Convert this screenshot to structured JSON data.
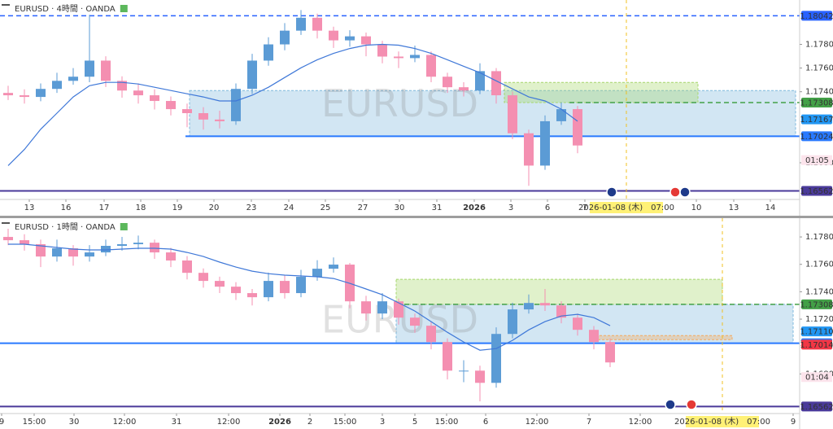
{
  "chart_data": [
    {
      "type": "candlestick",
      "title": "EURUSD · 4時間 · OANDA",
      "watermark": "EURUSD",
      "up_color": "#5b9bd5",
      "down_color": "#f48fb1",
      "ma_color": "#3f78d8",
      "xlim": [
        0,
        49.15
      ],
      "ylim": [
        1.1649,
        1.18175
      ],
      "yticks": [
        {
          "value": 1.178,
          "label": "1.17800"
        },
        {
          "value": 1.176,
          "label": "1.17600"
        },
        {
          "value": 1.174,
          "label": "1.17400"
        },
        {
          "value": 1.168,
          "label": "1.16800"
        }
      ],
      "xticks": [
        {
          "value": 1.8,
          "label": "13"
        },
        {
          "value": 4.05,
          "label": "16"
        },
        {
          "value": 6.4,
          "label": "17"
        },
        {
          "value": 8.65,
          "label": "18"
        },
        {
          "value": 10.9,
          "label": "19"
        },
        {
          "value": 13.15,
          "label": "20"
        },
        {
          "value": 15.45,
          "label": "23"
        },
        {
          "value": 17.75,
          "label": "24"
        },
        {
          "value": 20,
          "label": "25"
        },
        {
          "value": 22.3,
          "label": "27"
        },
        {
          "value": 24.55,
          "label": "30"
        },
        {
          "value": 26.85,
          "label": "31"
        },
        {
          "value": 29.15,
          "label": "2026"
        },
        {
          "value": 31.4,
          "label": "3"
        },
        {
          "value": 33.65,
          "label": "6"
        },
        {
          "value": 35.95,
          "label": "7"
        },
        {
          "value": 42.8,
          "label": "10"
        },
        {
          "value": 45.1,
          "label": "13"
        },
        {
          "value": 47.35,
          "label": "14"
        }
      ],
      "open": [
        1.1739,
        1.1737,
        1.17356,
        1.17424,
        1.17492,
        1.17527,
        1.17663,
        1.17492,
        1.1741,
        1.1737,
        1.17322,
        1.17253,
        1.17219,
        1.17165,
        1.17151,
        1.17424,
        1.17663,
        1.178,
        1.17916,
        1.18025,
        1.17916,
        1.17834,
        1.17868,
        1.178,
        1.17697,
        1.17684,
        1.17711,
        1.17527,
        1.17438,
        1.1741,
        1.17574,
        1.1737,
        1.17049,
        1.16776,
        1.17151,
        1.17253
      ],
      "high": [
        1.1745,
        1.1742,
        1.1747,
        1.1756,
        1.176,
        1.1805,
        1.177,
        1.1753,
        1.1747,
        1.1742,
        1.1736,
        1.173,
        1.1727,
        1.1724,
        1.1747,
        1.1772,
        1.1786,
        1.1798,
        1.1809,
        1.1806,
        1.1795,
        1.1792,
        1.179,
        1.1783,
        1.1774,
        1.1779,
        1.1774,
        1.1756,
        1.1748,
        1.1764,
        1.176,
        1.174,
        1.1708,
        1.172,
        1.1731,
        1.1728
      ],
      "low": [
        1.1733,
        1.173,
        1.1732,
        1.1739,
        1.1746,
        1.1748,
        1.1744,
        1.1735,
        1.173,
        1.1725,
        1.172,
        1.171,
        1.1708,
        1.1709,
        1.1712,
        1.1738,
        1.1762,
        1.1775,
        1.1788,
        1.1785,
        1.1777,
        1.1778,
        1.177,
        1.1764,
        1.176,
        1.1765,
        1.1748,
        1.1739,
        1.1736,
        1.1738,
        1.173,
        1.17,
        1.16605,
        1.1674,
        1.1712,
        1.1688
      ],
      "close": [
        1.1737,
        1.17356,
        1.17424,
        1.17492,
        1.17527,
        1.17663,
        1.17492,
        1.1741,
        1.1737,
        1.17322,
        1.17253,
        1.17219,
        1.17165,
        1.17151,
        1.17424,
        1.17663,
        1.178,
        1.17916,
        1.18025,
        1.17916,
        1.17834,
        1.17868,
        1.178,
        1.17697,
        1.17684,
        1.17711,
        1.17527,
        1.17438,
        1.1741,
        1.17574,
        1.1737,
        1.17049,
        1.16776,
        1.17151,
        1.17253,
        1.16946
      ],
      "ma_values": [
        1.16776,
        1.16912,
        1.17083,
        1.17219,
        1.17356,
        1.17451,
        1.17479,
        1.17479,
        1.17465,
        1.17438,
        1.1741,
        1.17383,
        1.17356,
        1.17322,
        1.17322,
        1.1737,
        1.17438,
        1.1752,
        1.17602,
        1.1767,
        1.17724,
        1.17765,
        1.17793,
        1.178,
        1.17793,
        1.17765,
        1.17724,
        1.1767,
        1.17615,
        1.17561,
        1.17492,
        1.17424,
        1.17356,
        1.17322,
        1.17253,
        1.17151
      ],
      "zones": [
        {
          "x": [
            11.65,
            48.9
          ],
          "y": [
            1.17024,
            1.1741
          ],
          "color": "#7fb8dc"
        },
        {
          "x": [
            31,
            42.9
          ],
          "y": [
            1.17308,
            1.17479
          ],
          "color": "#a5d66b"
        }
      ],
      "levels": [
        {
          "value": 1.18042,
          "color": "#2962ff",
          "style": "dashed",
          "start": 0
        },
        {
          "value": 1.17308,
          "color": "#43a047",
          "style": "dashed",
          "start": 35
        },
        {
          "value": 1.17167,
          "color": "#2196f3",
          "style": "none",
          "start": 0
        },
        {
          "value": 1.17024,
          "color": "#2979ff",
          "style": "solid",
          "start": 11.4
        },
        {
          "value": 1.16562,
          "color": "#4a3a9a",
          "style": "solid",
          "start": 0
        }
      ],
      "time_marker": {
        "x": 38.5,
        "label": "2026-01-08 (木)　07:00"
      },
      "countdown": "01:05"
    },
    {
      "type": "candlestick",
      "title": "EURUSD · 1時間 · OANDA",
      "watermark": "EURUSD",
      "up_color": "#5b9bd5",
      "down_color": "#f48fb1",
      "ma_color": "#3f78d8",
      "xlim": [
        0,
        49.15
      ],
      "ylim": [
        1.16511,
        1.17937
      ],
      "yticks": [
        {
          "value": 1.178,
          "label": "1.17800"
        },
        {
          "value": 1.176,
          "label": "1.17600"
        },
        {
          "value": 1.174,
          "label": "1.17400"
        },
        {
          "value": 1.172,
          "label": "1.17200"
        },
        {
          "value": 1.168,
          "label": "1.16800"
        }
      ],
      "xticks": [
        {
          "value": 0.1,
          "label": "9"
        },
        {
          "value": 2.1,
          "label": "15:00"
        },
        {
          "value": 4.55,
          "label": "30"
        },
        {
          "value": 7.65,
          "label": "12:00"
        },
        {
          "value": 10.85,
          "label": "31"
        },
        {
          "value": 14.05,
          "label": "12:00"
        },
        {
          "value": 17.2,
          "label": "2026"
        },
        {
          "value": 19.05,
          "label": "2"
        },
        {
          "value": 21.2,
          "label": "15:00"
        },
        {
          "value": 23.5,
          "label": "3"
        },
        {
          "value": 25.5,
          "label": "5"
        },
        {
          "value": 27.45,
          "label": "15:00"
        },
        {
          "value": 29.85,
          "label": "6"
        },
        {
          "value": 33,
          "label": "12:00"
        },
        {
          "value": 36.2,
          "label": "7"
        },
        {
          "value": 39.35,
          "label": "12:00"
        },
        {
          "value": 48.75,
          "label": "9"
        }
      ],
      "open": [
        1.178,
        1.17776,
        1.17747,
        1.17657,
        1.17717,
        1.17657,
        1.17687,
        1.17735,
        1.17747,
        1.17758,
        1.17687,
        1.17628,
        1.17538,
        1.17479,
        1.17437,
        1.1739,
        1.1736,
        1.17479,
        1.1739,
        1.17509,
        1.17568,
        1.17598,
        1.1733,
        1.17241,
        1.1733,
        1.17211,
        1.17152,
        1.17033,
        1.16824,
        1.16824,
        1.16735,
        1.17092,
        1.17271,
        1.17318,
        1.173,
        1.17211,
        1.17122,
        1.17033
      ],
      "high": [
        1.1786,
        1.1782,
        1.1778,
        1.1778,
        1.1774,
        1.1774,
        1.1778,
        1.178,
        1.1781,
        1.1778,
        1.1772,
        1.1766,
        1.1757,
        1.1751,
        1.1747,
        1.1742,
        1.1754,
        1.1752,
        1.1756,
        1.1763,
        1.1765,
        1.1761,
        1.1737,
        1.1739,
        1.1735,
        1.1724,
        1.1718,
        1.1706,
        1.169,
        1.1686,
        1.1714,
        1.1732,
        1.1738,
        1.1742,
        1.1733,
        1.1724,
        1.1715,
        1.1706
      ],
      "low": [
        1.1774,
        1.177,
        1.1758,
        1.1762,
        1.1759,
        1.1762,
        1.1766,
        1.177,
        1.1771,
        1.1764,
        1.1758,
        1.1749,
        1.1743,
        1.1739,
        1.1734,
        1.173,
        1.1733,
        1.1735,
        1.1736,
        1.1748,
        1.1754,
        1.1728,
        1.1719,
        1.172,
        1.1716,
        1.171,
        1.1698,
        1.1676,
        1.1674,
        1.166,
        1.167,
        1.1706,
        1.1724,
        1.1726,
        1.1717,
        1.1708,
        1.1698,
        1.1685
      ],
      "close": [
        1.17776,
        1.17747,
        1.17657,
        1.17717,
        1.17657,
        1.17687,
        1.17735,
        1.17747,
        1.17758,
        1.17687,
        1.17628,
        1.17538,
        1.17479,
        1.17437,
        1.1739,
        1.1736,
        1.17479,
        1.1739,
        1.17509,
        1.17568,
        1.17598,
        1.1733,
        1.17241,
        1.1733,
        1.17211,
        1.17152,
        1.17033,
        1.16824,
        1.16824,
        1.16735,
        1.17092,
        1.17271,
        1.17318,
        1.173,
        1.17211,
        1.17122,
        1.17033,
        1.16884
      ],
      "ma_values": [
        1.17747,
        1.17747,
        1.17735,
        1.17723,
        1.17711,
        1.17705,
        1.17705,
        1.17711,
        1.17717,
        1.17717,
        1.17711,
        1.17687,
        1.17657,
        1.17616,
        1.1758,
        1.1755,
        1.17532,
        1.17521,
        1.17515,
        1.17509,
        1.17497,
        1.17461,
        1.1742,
        1.17378,
        1.17319,
        1.17259,
        1.17182,
        1.17104,
        1.17033,
        1.16973,
        1.16985,
        1.17045,
        1.17122,
        1.17182,
        1.17223,
        1.17235,
        1.17211,
        1.17152
      ],
      "zones": [
        {
          "x": [
            24.35,
            48.75
          ],
          "y": [
            1.17024,
            1.17308
          ],
          "color": "#7fb8dc"
        },
        {
          "x": [
            24.35,
            44.4
          ],
          "y": [
            1.17308,
            1.17491
          ],
          "color": "#a5d66b"
        },
        {
          "x": [
            36.35,
            45
          ],
          "y": [
            1.1705,
            1.1708
          ],
          "color": "#f5a95b"
        }
      ],
      "levels": [
        {
          "value": 1.17308,
          "color": "#43a047",
          "style": "dashed",
          "start": 24.35
        },
        {
          "value": 1.1711,
          "label": "1.17110",
          "color": "#2196f3",
          "style": "none",
          "start": 0
        },
        {
          "value": 1.17024,
          "color": "#2979ff",
          "style": "solid",
          "start": 0
        },
        {
          "value": 1.17014,
          "color": "#f23645",
          "style": "none",
          "start": 0
        },
        {
          "value": 1.16562,
          "color": "#4a3a9a",
          "style": "solid",
          "start": 0
        }
      ],
      "time_marker": {
        "x": 44.4,
        "label": "2026-01-08 (木)　07:00"
      },
      "countdown": "01:04"
    }
  ]
}
